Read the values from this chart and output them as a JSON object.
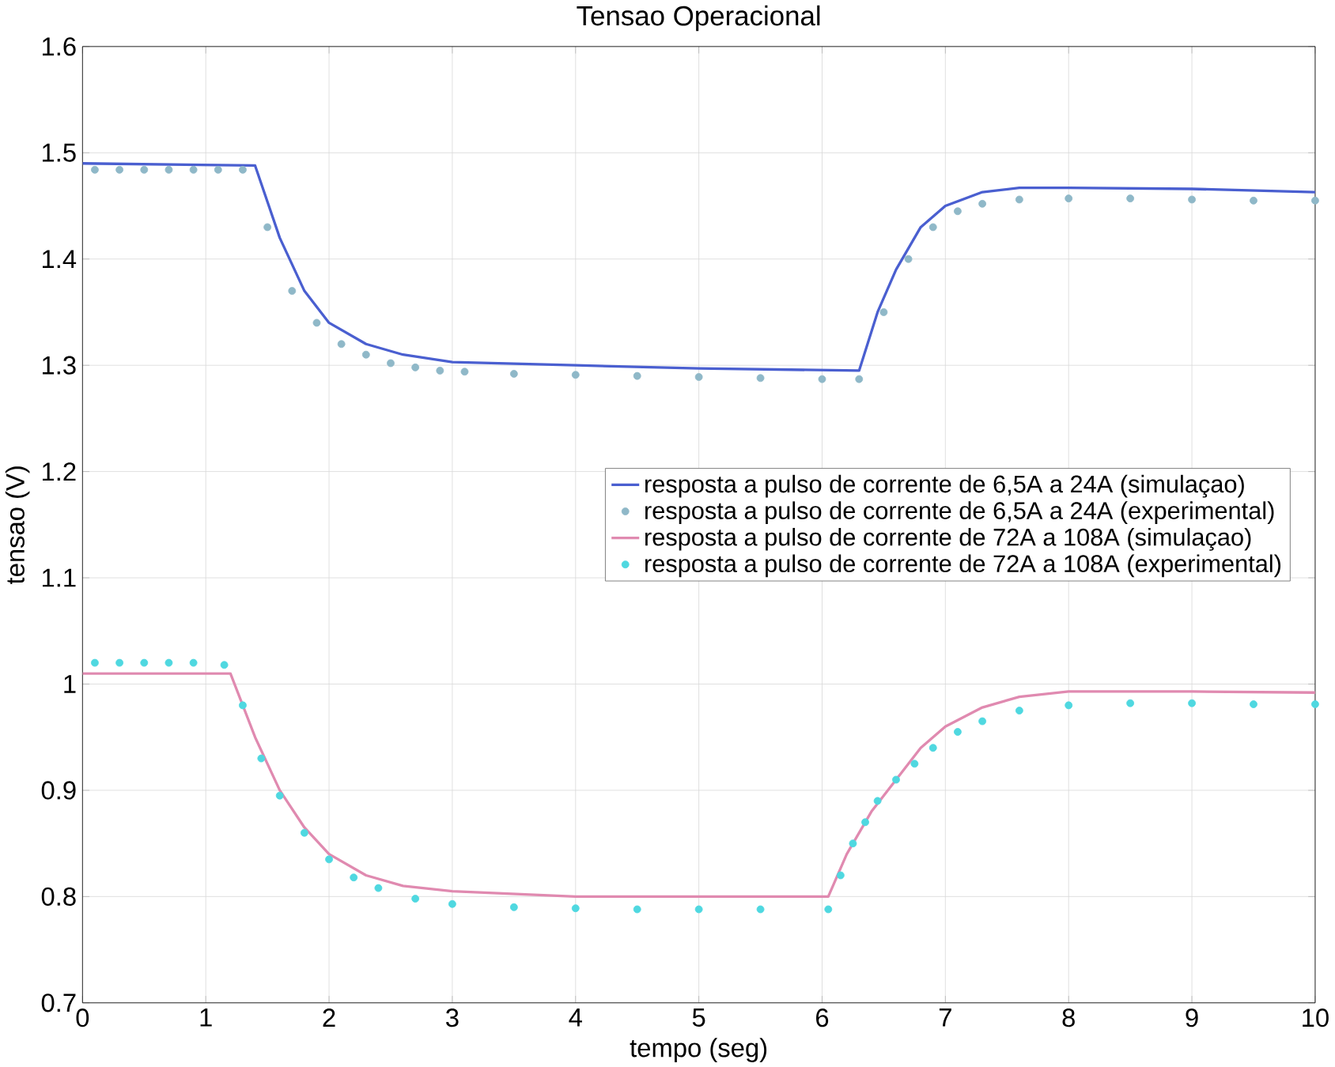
{
  "chart_data": {
    "type": "line",
    "title": "Tensao Operacional",
    "xlabel": "tempo (seg)",
    "ylabel": "tensao (V)",
    "xlim": [
      0,
      10
    ],
    "xticks": [
      0,
      1,
      2,
      3,
      4,
      5,
      6,
      7,
      8,
      9,
      10
    ],
    "ylim": [
      0.7,
      1.6
    ],
    "yticks": [
      0.7,
      0.8,
      0.9,
      1,
      1.1,
      1.2,
      1.3,
      1.4,
      1.5,
      1.6
    ],
    "grid": true,
    "legend": "right",
    "series": [
      {
        "name": "resposta a pulso de corrente de 6,5A a 24A (simulaçao)",
        "type": "line",
        "color": "#4a5fd0",
        "x": [
          0,
          1.4,
          1.6,
          1.8,
          2.0,
          2.3,
          2.6,
          3,
          4,
          5,
          6.3,
          6.45,
          6.6,
          6.8,
          7.0,
          7.3,
          7.6,
          8,
          9,
          10
        ],
        "values": [
          1.49,
          1.488,
          1.42,
          1.37,
          1.34,
          1.32,
          1.31,
          1.303,
          1.3,
          1.297,
          1.295,
          1.35,
          1.39,
          1.43,
          1.45,
          1.463,
          1.467,
          1.467,
          1.466,
          1.463
        ]
      },
      {
        "name": "resposta a pulso de corrente de 6,5A a 24A (experimental)",
        "type": "scatter",
        "marker": "circle",
        "color": "#8fb8c8",
        "x": [
          0.1,
          0.3,
          0.5,
          0.7,
          0.9,
          1.1,
          1.3,
          1.5,
          1.7,
          1.9,
          2.1,
          2.3,
          2.5,
          2.7,
          2.9,
          3.1,
          3.5,
          4,
          4.5,
          5,
          5.5,
          6,
          6.3,
          6.5,
          6.7,
          6.9,
          7.1,
          7.3,
          7.6,
          8,
          8.5,
          9,
          9.5,
          10
        ],
        "values": [
          1.484,
          1.484,
          1.484,
          1.484,
          1.484,
          1.484,
          1.484,
          1.43,
          1.37,
          1.34,
          1.32,
          1.31,
          1.302,
          1.298,
          1.295,
          1.294,
          1.292,
          1.291,
          1.29,
          1.289,
          1.288,
          1.287,
          1.287,
          1.35,
          1.4,
          1.43,
          1.445,
          1.452,
          1.456,
          1.457,
          1.457,
          1.456,
          1.455,
          1.455
        ]
      },
      {
        "name": "resposta a pulso de corrente de 72A a 108A (simulaçao)",
        "type": "line",
        "color": "#e08ab0",
        "x": [
          0,
          1.2,
          1.4,
          1.6,
          1.8,
          2.0,
          2.3,
          2.6,
          3,
          4,
          5,
          6.05,
          6.2,
          6.4,
          6.6,
          6.8,
          7.0,
          7.3,
          7.6,
          8,
          9,
          10
        ],
        "values": [
          1.01,
          1.01,
          0.95,
          0.9,
          0.865,
          0.84,
          0.82,
          0.81,
          0.805,
          0.8,
          0.8,
          0.8,
          0.84,
          0.88,
          0.91,
          0.94,
          0.96,
          0.978,
          0.988,
          0.993,
          0.993,
          0.992
        ]
      },
      {
        "name": "resposta a pulso de corrente de 72A a 108A (experimental)",
        "type": "scatter",
        "marker": "circle",
        "color": "#4fd8e0",
        "x": [
          0.1,
          0.3,
          0.5,
          0.7,
          0.9,
          1.15,
          1.3,
          1.45,
          1.6,
          1.8,
          2.0,
          2.2,
          2.4,
          2.7,
          3,
          3.5,
          4,
          4.5,
          5,
          5.5,
          6.05,
          6.15,
          6.25,
          6.35,
          6.45,
          6.6,
          6.75,
          6.9,
          7.1,
          7.3,
          7.6,
          8,
          8.5,
          9,
          9.5,
          10
        ],
        "values": [
          1.02,
          1.02,
          1.02,
          1.02,
          1.02,
          1.018,
          0.98,
          0.93,
          0.895,
          0.86,
          0.835,
          0.818,
          0.808,
          0.798,
          0.793,
          0.79,
          0.789,
          0.788,
          0.788,
          0.788,
          0.788,
          0.82,
          0.85,
          0.87,
          0.89,
          0.91,
          0.925,
          0.94,
          0.955,
          0.965,
          0.975,
          0.98,
          0.982,
          0.982,
          0.981,
          0.981
        ]
      }
    ]
  }
}
